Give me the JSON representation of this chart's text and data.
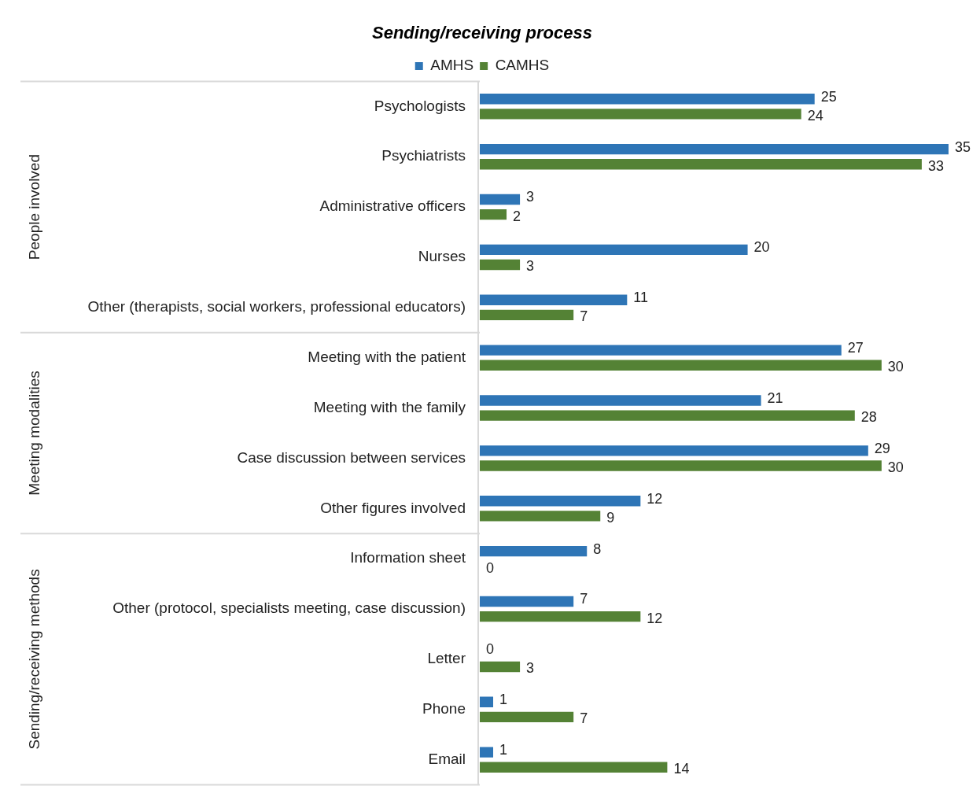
{
  "chart_data": {
    "type": "bar",
    "orientation": "horizontal",
    "title": "Sending/receiving process",
    "categories": [
      "Psychologists",
      "Psychiatrists",
      "Administrative officers",
      "Nurses",
      "Other (therapists, social workers, professional educators)",
      "Meeting with the patient",
      "Meeting with the family",
      "Case discussion between services",
      "Other figures involved",
      "Information sheet",
      "Other (protocol, specialists meeting, case discussion)",
      "Letter",
      "Phone",
      "Email"
    ],
    "series": [
      {
        "name": "AMHS",
        "color": "#2e75b6",
        "values": [
          25,
          35,
          3,
          20,
          11,
          27,
          21,
          29,
          12,
          8,
          7,
          0,
          1,
          1
        ]
      },
      {
        "name": "CAMHS",
        "color": "#548235",
        "values": [
          24,
          33,
          2,
          3,
          7,
          30,
          28,
          30,
          9,
          0,
          12,
          3,
          7,
          14
        ]
      }
    ],
    "annotations": [
      "People involved",
      "Meeting modalities",
      "Sending/receiving methods"
    ],
    "data_labels": true,
    "legend": "top",
    "grid": false
  }
}
